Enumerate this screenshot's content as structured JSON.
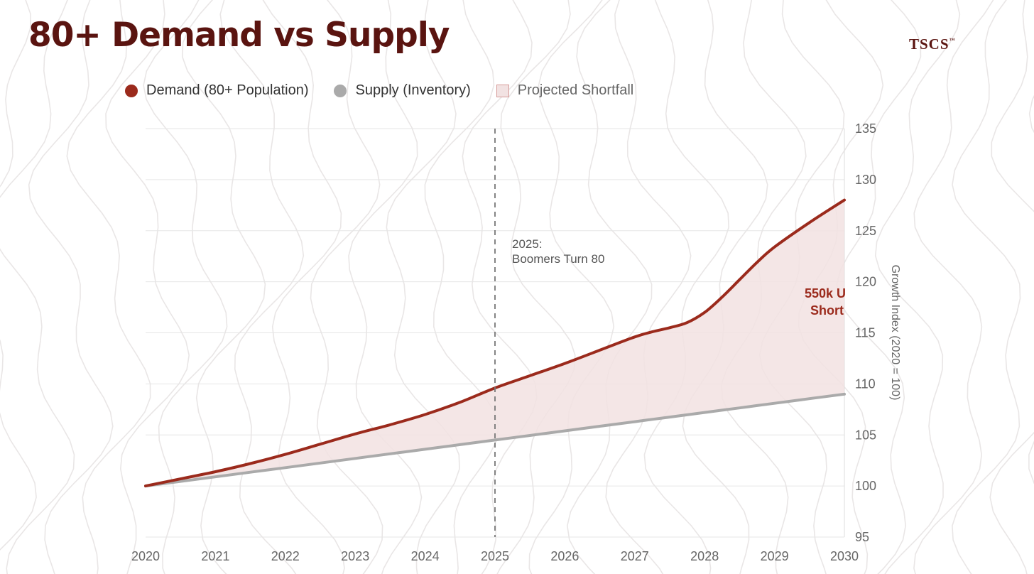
{
  "header": {
    "title": "80+ Demand vs Supply",
    "brand": "TSCS",
    "brand_mark": "™"
  },
  "legend": {
    "demand": "Demand (80+ Population)",
    "supply": "Supply (Inventory)",
    "shortfall": "Projected Shortfall"
  },
  "colors": {
    "demand": "#9b2a1c",
    "supply": "#aaaaaa",
    "shortfall_fill": "#f2e2e2",
    "title": "#5a1410"
  },
  "chart_data": {
    "type": "area",
    "title": "80+ Demand vs Supply",
    "xlabel": "",
    "ylabel": "Growth Index (2020 = 100)",
    "x": [
      2020,
      2020.5,
      2021,
      2021.5,
      2022,
      2022.5,
      2023,
      2023.5,
      2024,
      2024.5,
      2025,
      2025.5,
      2026,
      2026.5,
      2027,
      2027.25,
      2027.5,
      2027.75,
      2028,
      2028.25,
      2028.5,
      2028.75,
      2029,
      2029.5,
      2030
    ],
    "x_ticks": [
      "2020",
      "2021",
      "2022",
      "2023",
      "2024",
      "2025",
      "2026",
      "2027",
      "2028",
      "2029",
      "2030"
    ],
    "xlim": [
      2020,
      2030
    ],
    "ylim": [
      95,
      135
    ],
    "y_ticks": [
      "95",
      "100",
      "105",
      "110",
      "115",
      "120",
      "125",
      "130",
      "135"
    ],
    "grid": true,
    "series": [
      {
        "name": "Demand (80+ Population)",
        "values": [
          100,
          100.7,
          101.4,
          102.2,
          103.1,
          104.1,
          105.1,
          106.0,
          107.0,
          108.2,
          109.6,
          110.8,
          112.0,
          113.3,
          114.6,
          115.1,
          115.5,
          116.0,
          117.0,
          118.5,
          120.2,
          121.9,
          123.4,
          125.8,
          128.0
        ]
      },
      {
        "name": "Supply (Inventory)",
        "values": [
          100,
          100.45,
          100.9,
          101.35,
          101.8,
          102.25,
          102.7,
          103.15,
          103.6,
          104.05,
          104.5,
          104.95,
          105.4,
          105.85,
          106.3,
          106.525,
          106.75,
          106.975,
          107.2,
          107.425,
          107.65,
          107.875,
          108.1,
          108.55,
          109.0
        ]
      }
    ],
    "annotations": {
      "marker_x": 2025,
      "marker_line1": "2025:",
      "marker_line2": "Boomers Turn 80",
      "shortfall_line1": "550k U",
      "shortfall_line2": "Short"
    }
  }
}
